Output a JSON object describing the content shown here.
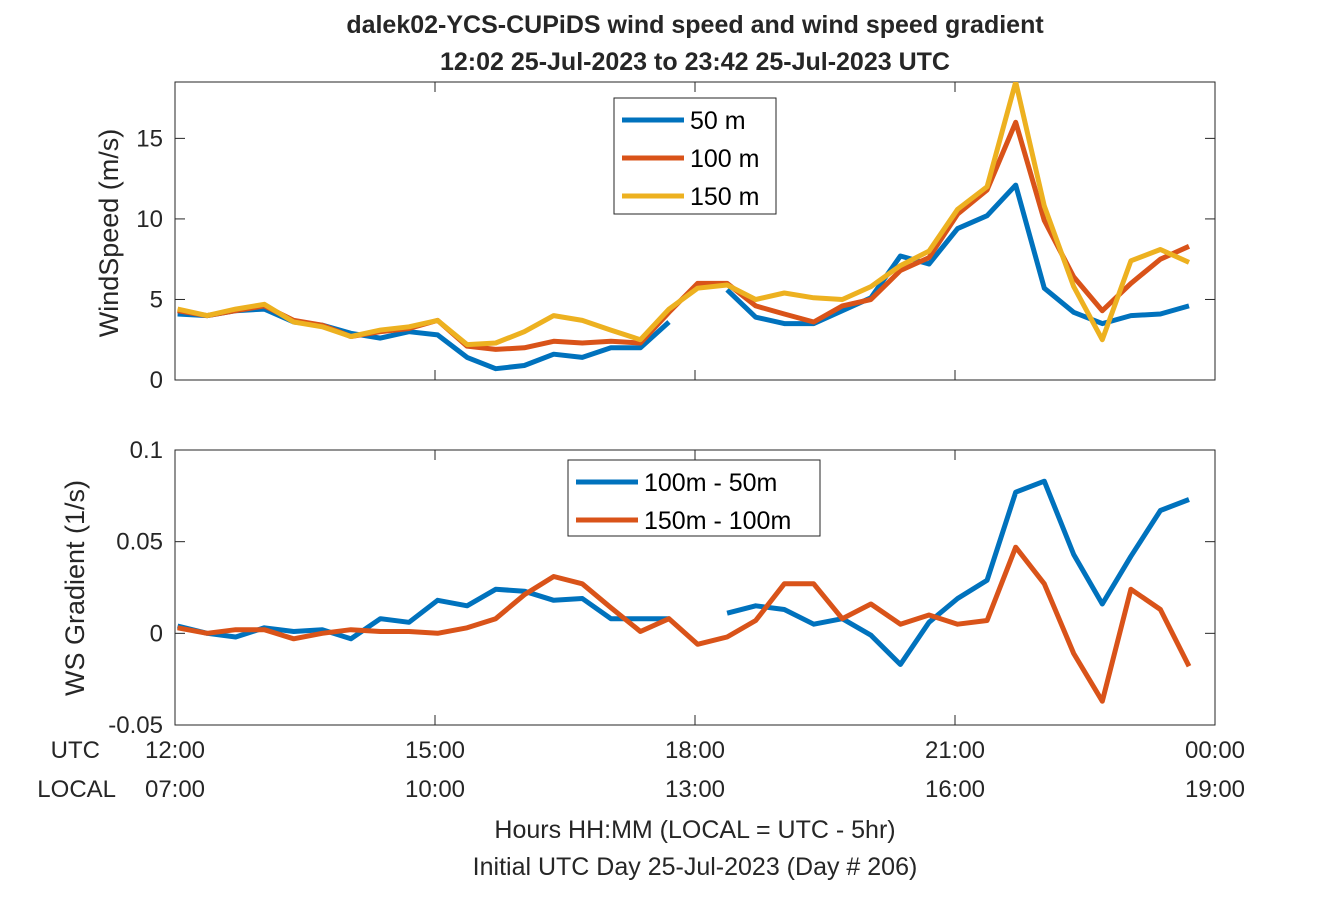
{
  "chart_data": [
    {
      "type": "line",
      "title": "dalek02-YCS-CUPiDS  wind speed and wind speed gradient",
      "subtitle": "12:02 25-Jul-2023 to 23:42 25-Jul-2023  UTC",
      "ylabel": "WindSpeed (m/s)",
      "ylim": [
        0,
        18.5
      ],
      "yticks": [
        "0",
        "5",
        "10",
        "15"
      ],
      "xlim": [
        12,
        24
      ],
      "legend_location": "top-center",
      "x": [
        12.03,
        12.37,
        12.7,
        13.03,
        13.37,
        13.7,
        14.03,
        14.37,
        14.7,
        15.03,
        15.37,
        15.7,
        16.03,
        16.37,
        16.7,
        17.03,
        17.37,
        17.7,
        18.03,
        18.37,
        18.7,
        19.03,
        19.37,
        19.7,
        20.03,
        20.37,
        20.7,
        21.03,
        21.37,
        21.7,
        22.03,
        22.37,
        22.7,
        23.03,
        23.37,
        23.7
      ],
      "series": [
        {
          "name": "50 m",
          "color": "#0072BD",
          "values": [
            4.1,
            4.0,
            4.3,
            4.4,
            3.6,
            3.4,
            2.9,
            2.6,
            3.0,
            2.8,
            1.4,
            0.7,
            0.9,
            1.6,
            1.4,
            2.0,
            2.0,
            3.6,
            null,
            5.6,
            3.9,
            3.5,
            3.5,
            4.3,
            5.1,
            7.7,
            7.2,
            9.4,
            10.2,
            12.1,
            5.7,
            4.2,
            3.5,
            4.0,
            4.1,
            4.6
          ]
        },
        {
          "name": "100 m",
          "color": "#D95319",
          "values": [
            4.3,
            4.0,
            4.3,
            4.6,
            3.7,
            3.4,
            2.7,
            3.0,
            3.2,
            3.7,
            2.1,
            1.9,
            2.0,
            2.4,
            2.3,
            2.4,
            2.3,
            4.2,
            6.0,
            6.0,
            4.6,
            4.1,
            3.6,
            4.6,
            5.0,
            6.8,
            7.6,
            10.3,
            11.8,
            16.0,
            9.9,
            6.4,
            4.3,
            6.0,
            7.5,
            8.3
          ]
        },
        {
          "name": "150 m",
          "color": "#EDB120",
          "values": [
            4.4,
            4.0,
            4.4,
            4.7,
            3.6,
            3.3,
            2.7,
            3.1,
            3.3,
            3.7,
            2.2,
            2.3,
            3.0,
            4.0,
            3.7,
            3.1,
            2.5,
            4.4,
            5.7,
            5.9,
            5.0,
            5.4,
            5.1,
            5.0,
            5.8,
            7.1,
            8.0,
            10.6,
            12.0,
            18.5,
            10.8,
            5.8,
            2.5,
            7.4,
            8.1,
            7.3
          ]
        }
      ]
    },
    {
      "type": "line",
      "ylabel": "WS Gradient (1/s)",
      "ylim": [
        -0.05,
        0.1
      ],
      "yticks": [
        "-0.05",
        "0",
        "0.05",
        "0.1"
      ],
      "xlim": [
        12,
        24
      ],
      "xticks_utc": [
        "12:00",
        "15:00",
        "18:00",
        "21:00",
        "00:00"
      ],
      "xticks_local": [
        "07:00",
        "10:00",
        "13:00",
        "16:00",
        "19:00"
      ],
      "xtick_row_labels": [
        "UTC",
        "LOCAL"
      ],
      "xlabel": "Hours HH:MM  (LOCAL = UTC - 5hr)",
      "xlabel2": "Initial UTC Day 25-Jul-2023 (Day # 206)",
      "legend_location": "top-center",
      "x": [
        12.03,
        12.37,
        12.7,
        13.03,
        13.37,
        13.7,
        14.03,
        14.37,
        14.7,
        15.03,
        15.37,
        15.7,
        16.03,
        16.37,
        16.7,
        17.03,
        17.37,
        17.7,
        18.03,
        18.37,
        18.7,
        19.03,
        19.37,
        19.7,
        20.03,
        20.37,
        20.7,
        21.03,
        21.37,
        21.7,
        22.03,
        22.37,
        22.7,
        23.03,
        23.37,
        23.7
      ],
      "series": [
        {
          "name": "100m - 50m",
          "color": "#0072BD",
          "values": [
            0.004,
            0.0,
            -0.002,
            0.003,
            0.001,
            0.002,
            -0.003,
            0.008,
            0.006,
            0.018,
            0.015,
            0.024,
            0.023,
            0.018,
            0.019,
            0.008,
            0.008,
            0.008,
            null,
            0.011,
            0.015,
            0.013,
            0.005,
            0.008,
            -0.001,
            -0.017,
            0.006,
            0.019,
            0.029,
            0.077,
            0.083,
            0.043,
            0.016,
            0.042,
            0.067,
            0.073
          ]
        },
        {
          "name": "150m - 100m",
          "color": "#D95319",
          "values": [
            0.003,
            0.0,
            0.002,
            0.002,
            -0.003,
            0.0,
            0.002,
            0.001,
            0.001,
            0.0,
            0.003,
            0.008,
            0.021,
            0.031,
            0.027,
            0.014,
            0.001,
            0.008,
            -0.006,
            -0.002,
            0.007,
            0.027,
            0.027,
            0.008,
            0.016,
            0.005,
            0.01,
            0.005,
            0.007,
            0.047,
            0.027,
            -0.011,
            -0.037,
            0.024,
            0.013,
            -0.018
          ]
        }
      ]
    }
  ]
}
